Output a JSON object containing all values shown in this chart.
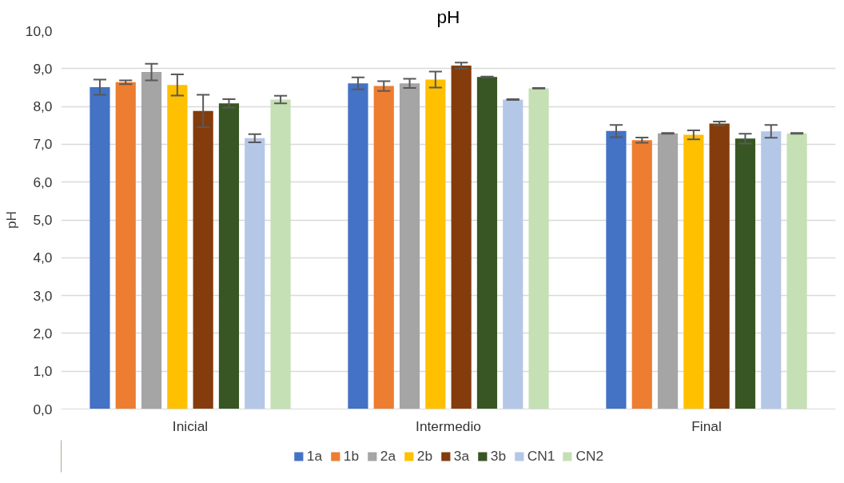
{
  "chart_data": {
    "type": "bar",
    "title": "pH",
    "ylabel": "pH",
    "categories": [
      "Inicial",
      "Intermedio",
      "Final"
    ],
    "series": [
      {
        "name": "1a",
        "color": "#4472c4",
        "values": [
          8.51,
          8.61,
          7.35
        ],
        "errors": [
          0.2,
          0.16,
          0.16
        ]
      },
      {
        "name": "1b",
        "color": "#ed7d31",
        "values": [
          8.64,
          8.54,
          7.11
        ],
        "errors": [
          0.05,
          0.13,
          0.07
        ]
      },
      {
        "name": "2a",
        "color": "#a5a5a5",
        "values": [
          8.91,
          8.61,
          7.29
        ],
        "errors": [
          0.22,
          0.12,
          0.01
        ]
      },
      {
        "name": "2b",
        "color": "#ffc000",
        "values": [
          8.57,
          8.71,
          7.25
        ],
        "errors": [
          0.28,
          0.21,
          0.12
        ]
      },
      {
        "name": "3a",
        "color": "#843c0c",
        "values": [
          7.88,
          9.08,
          7.55
        ],
        "errors": [
          0.43,
          0.08,
          0.05
        ]
      },
      {
        "name": "3b",
        "color": "#375623",
        "values": [
          8.08,
          8.78,
          7.15
        ],
        "errors": [
          0.11,
          0.01,
          0.13
        ]
      },
      {
        "name": "CN1",
        "color": "#b4c7e7",
        "values": [
          7.16,
          8.18,
          7.34
        ],
        "errors": [
          0.11,
          0.01,
          0.17
        ]
      },
      {
        "name": "CN2",
        "color": "#c5e0b4",
        "values": [
          8.18,
          8.48,
          7.29
        ],
        "errors": [
          0.1,
          0.01,
          0.01
        ]
      }
    ],
    "ylim": [
      0,
      10
    ],
    "yticks": [
      {
        "value": 0,
        "label": "0,0"
      },
      {
        "value": 1,
        "label": "1,0"
      },
      {
        "value": 2,
        "label": "2,0"
      },
      {
        "value": 3,
        "label": "3,0"
      },
      {
        "value": 4,
        "label": "4,0"
      },
      {
        "value": 5,
        "label": "5,0"
      },
      {
        "value": 6,
        "label": "6,0"
      },
      {
        "value": 7,
        "label": "7,0"
      },
      {
        "value": 8,
        "label": "8,0"
      },
      {
        "value": 9,
        "label": "9,0"
      },
      {
        "value": 10,
        "label": "10,0"
      }
    ],
    "grid": "y",
    "legend": "bottom"
  }
}
